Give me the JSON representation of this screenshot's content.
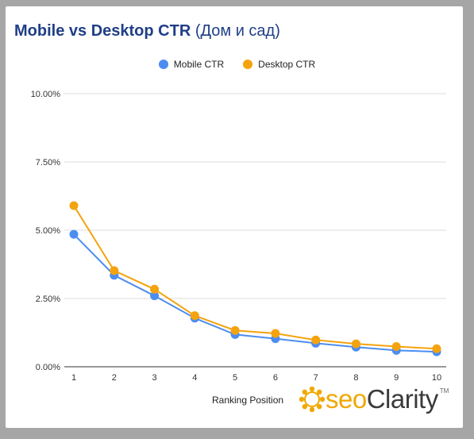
{
  "title": {
    "main": "Mobile vs Desktop CTR",
    "sub": "(Дом и сад)"
  },
  "legend": [
    {
      "label": "Mobile CTR",
      "color": "#4c8df0"
    },
    {
      "label": "Desktop CTR",
      "color": "#f4a30e"
    }
  ],
  "brand": {
    "seo": "seo",
    "clarity": "Clarity",
    "tm": "TM",
    "icon": "sun-logo-icon"
  },
  "chart_data": {
    "type": "line",
    "title": "Mobile vs Desktop CTR (Дом и сад)",
    "xlabel": "Ranking Position",
    "ylabel": "",
    "x": [
      1,
      2,
      3,
      4,
      5,
      6,
      7,
      8,
      9,
      10
    ],
    "x_tick_labels": [
      "1",
      "2",
      "3",
      "4",
      "5",
      "6",
      "7",
      "8",
      "9",
      "10"
    ],
    "ylim": [
      0,
      10
    ],
    "y_ticks": [
      0,
      2.5,
      5,
      7.5,
      10
    ],
    "y_tick_labels": [
      "0.00%",
      "2.50%",
      "5.00%",
      "7.50%",
      "10.00%"
    ],
    "grid": true,
    "legend_position": "top",
    "series": [
      {
        "name": "Mobile CTR",
        "color": "#4c8df0",
        "values": [
          4.85,
          3.35,
          2.6,
          1.78,
          1.18,
          1.03,
          0.86,
          0.72,
          0.6,
          0.55
        ]
      },
      {
        "name": "Desktop CTR",
        "color": "#f4a30e",
        "values": [
          5.9,
          3.52,
          2.84,
          1.87,
          1.33,
          1.22,
          0.98,
          0.84,
          0.74,
          0.66
        ]
      }
    ]
  }
}
